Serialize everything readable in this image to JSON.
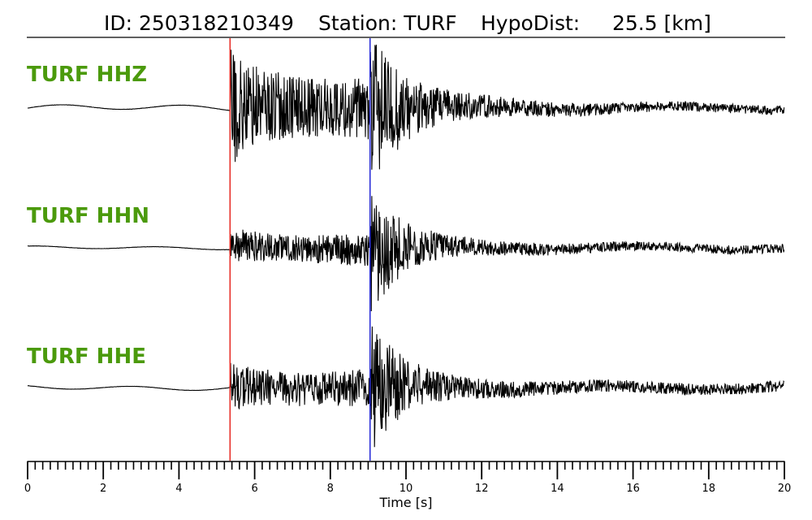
{
  "header": {
    "id_text": "ID: 250318210349",
    "station_text": "Station: TURF",
    "hypodist_text": "HypoDist:     25.5 [km]"
  },
  "chart_data": {
    "type": "line",
    "title": "ID: 250318210349   Station: TURF   HypoDist:     25.5 [km]",
    "xlabel": "Time [s]",
    "xlim": [
      0,
      20
    ],
    "x_major_ticks": [
      0,
      2,
      4,
      6,
      8,
      10,
      12,
      14,
      16,
      18,
      20
    ],
    "x_minor_tick_step": 0.2,
    "grid": false,
    "picks": [
      {
        "phase": "P",
        "time": 5.35,
        "color": "#e8302a"
      },
      {
        "phase": "S",
        "time": 9.05,
        "color": "#2b2fd8"
      }
    ],
    "series": [
      {
        "name": "TURF HHZ",
        "color": "#000000",
        "envelope": {
          "pre_event_level": 0.04,
          "p_onset": 5.35,
          "p_amplitude": 0.9,
          "coda_level_at_s": 0.55,
          "s_amplitude": 0.95,
          "end_level": 0.08
        }
      },
      {
        "name": "TURF HHN",
        "color": "#000000",
        "envelope": {
          "pre_event_level": 0.02,
          "p_onset": 5.35,
          "p_amplitude": 0.25,
          "coda_level_at_s": 0.3,
          "s_amplitude": 1.0,
          "end_level": 0.08
        }
      },
      {
        "name": "TURF HHE",
        "color": "#000000",
        "envelope": {
          "pre_event_level": 0.03,
          "p_onset": 5.35,
          "p_amplitude": 0.35,
          "coda_level_at_s": 0.35,
          "s_amplitude": 1.0,
          "end_level": 0.1
        }
      }
    ]
  }
}
